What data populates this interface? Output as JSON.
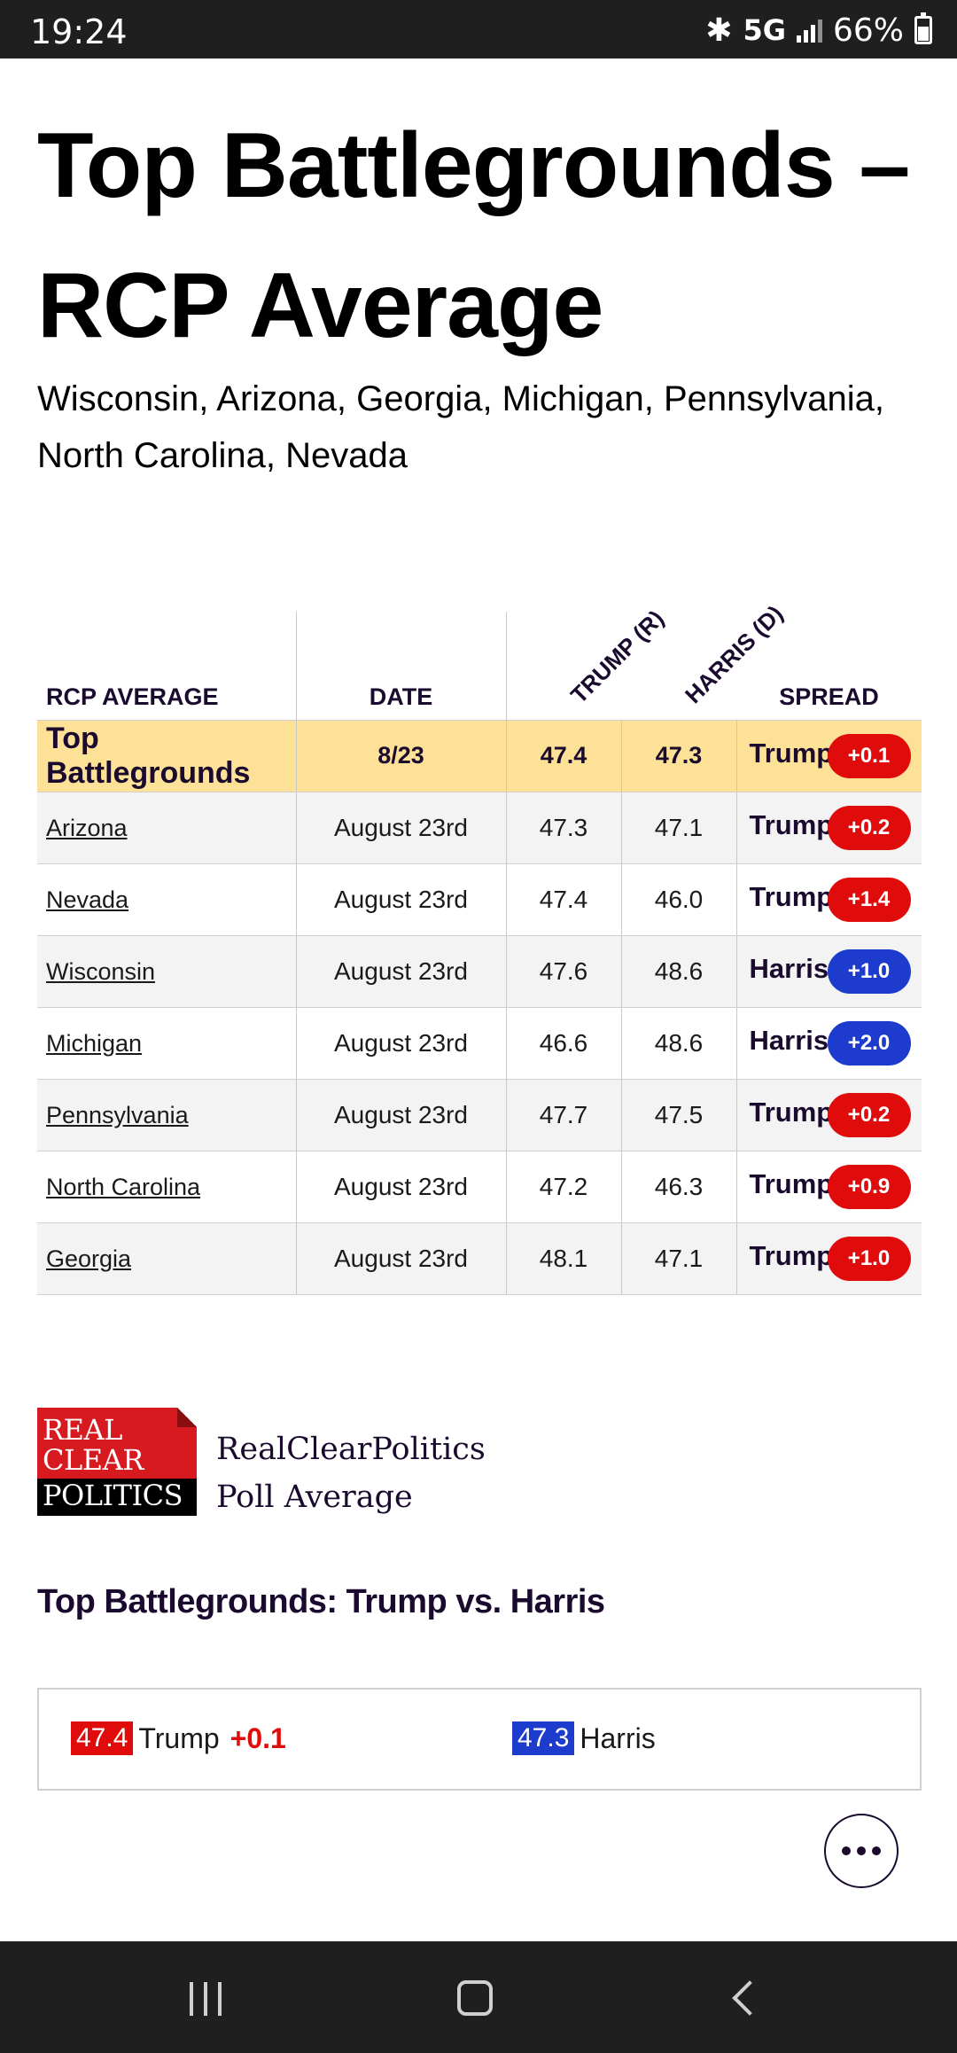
{
  "status_bar": {
    "time": "19:24",
    "network": "5G",
    "battery": "66%"
  },
  "page": {
    "title": "Top Battlegrounds – RCP Average",
    "subtitle": "Wisconsin, Arizona, Georgia, Michigan, Pennsylvania, North Carolina, Nevada"
  },
  "table": {
    "headers": {
      "rcp_average": "RCP AVERAGE",
      "date": "DATE",
      "trump": "TRUMP (R)",
      "harris": "HARRIS (D)",
      "spread": "SPREAD"
    },
    "top_row": {
      "name": "Top Battlegrounds",
      "date": "8/23",
      "trump": "47.4",
      "harris": "47.3",
      "leader": "Trump",
      "spread": "+0.1",
      "color": "#e00c0c"
    },
    "rows": [
      {
        "state": "Arizona",
        "date": "August 23rd",
        "trump": "47.3",
        "harris": "47.1",
        "leader": "Trump",
        "spread": "+0.2",
        "party": "red"
      },
      {
        "state": "Nevada",
        "date": "August 23rd",
        "trump": "47.4",
        "harris": "46.0",
        "leader": "Trump",
        "spread": "+1.4",
        "party": "red"
      },
      {
        "state": "Wisconsin",
        "date": "August 23rd",
        "trump": "47.6",
        "harris": "48.6",
        "leader": "Harris",
        "spread": "+1.0",
        "party": "blue"
      },
      {
        "state": "Michigan",
        "date": "August 23rd",
        "trump": "46.6",
        "harris": "48.6",
        "leader": "Harris",
        "spread": "+2.0",
        "party": "blue"
      },
      {
        "state": "Pennsylvania",
        "date": "August 23rd",
        "trump": "47.7",
        "harris": "47.5",
        "leader": "Trump",
        "spread": "+0.2",
        "party": "red"
      },
      {
        "state": "North Carolina",
        "date": "August 23rd",
        "trump": "47.2",
        "harris": "46.3",
        "leader": "Trump",
        "spread": "+0.9",
        "party": "red"
      },
      {
        "state": "Georgia",
        "date": "August 23rd",
        "trump": "48.1",
        "harris": "47.1",
        "leader": "Trump",
        "spread": "+1.0",
        "party": "red"
      }
    ]
  },
  "logo": {
    "line1": "REAL",
    "line2": "CLEAR",
    "line3": "POLITICS"
  },
  "rcp_label": {
    "line1": "RealClearPolitics",
    "line2": "Poll Average"
  },
  "section_heading": "Top Battlegrounds: Trump vs. Harris",
  "summary": {
    "trump_value": "47.4",
    "trump_name": "Trump",
    "trump_spread": "+0.1",
    "harris_value": "47.3",
    "harris_name": "Harris"
  },
  "colors": {
    "republican": "#e00c0c",
    "democrat": "#1d3bcc",
    "highlight_row": "#fde196",
    "heading_text": "#1a0a2e"
  }
}
